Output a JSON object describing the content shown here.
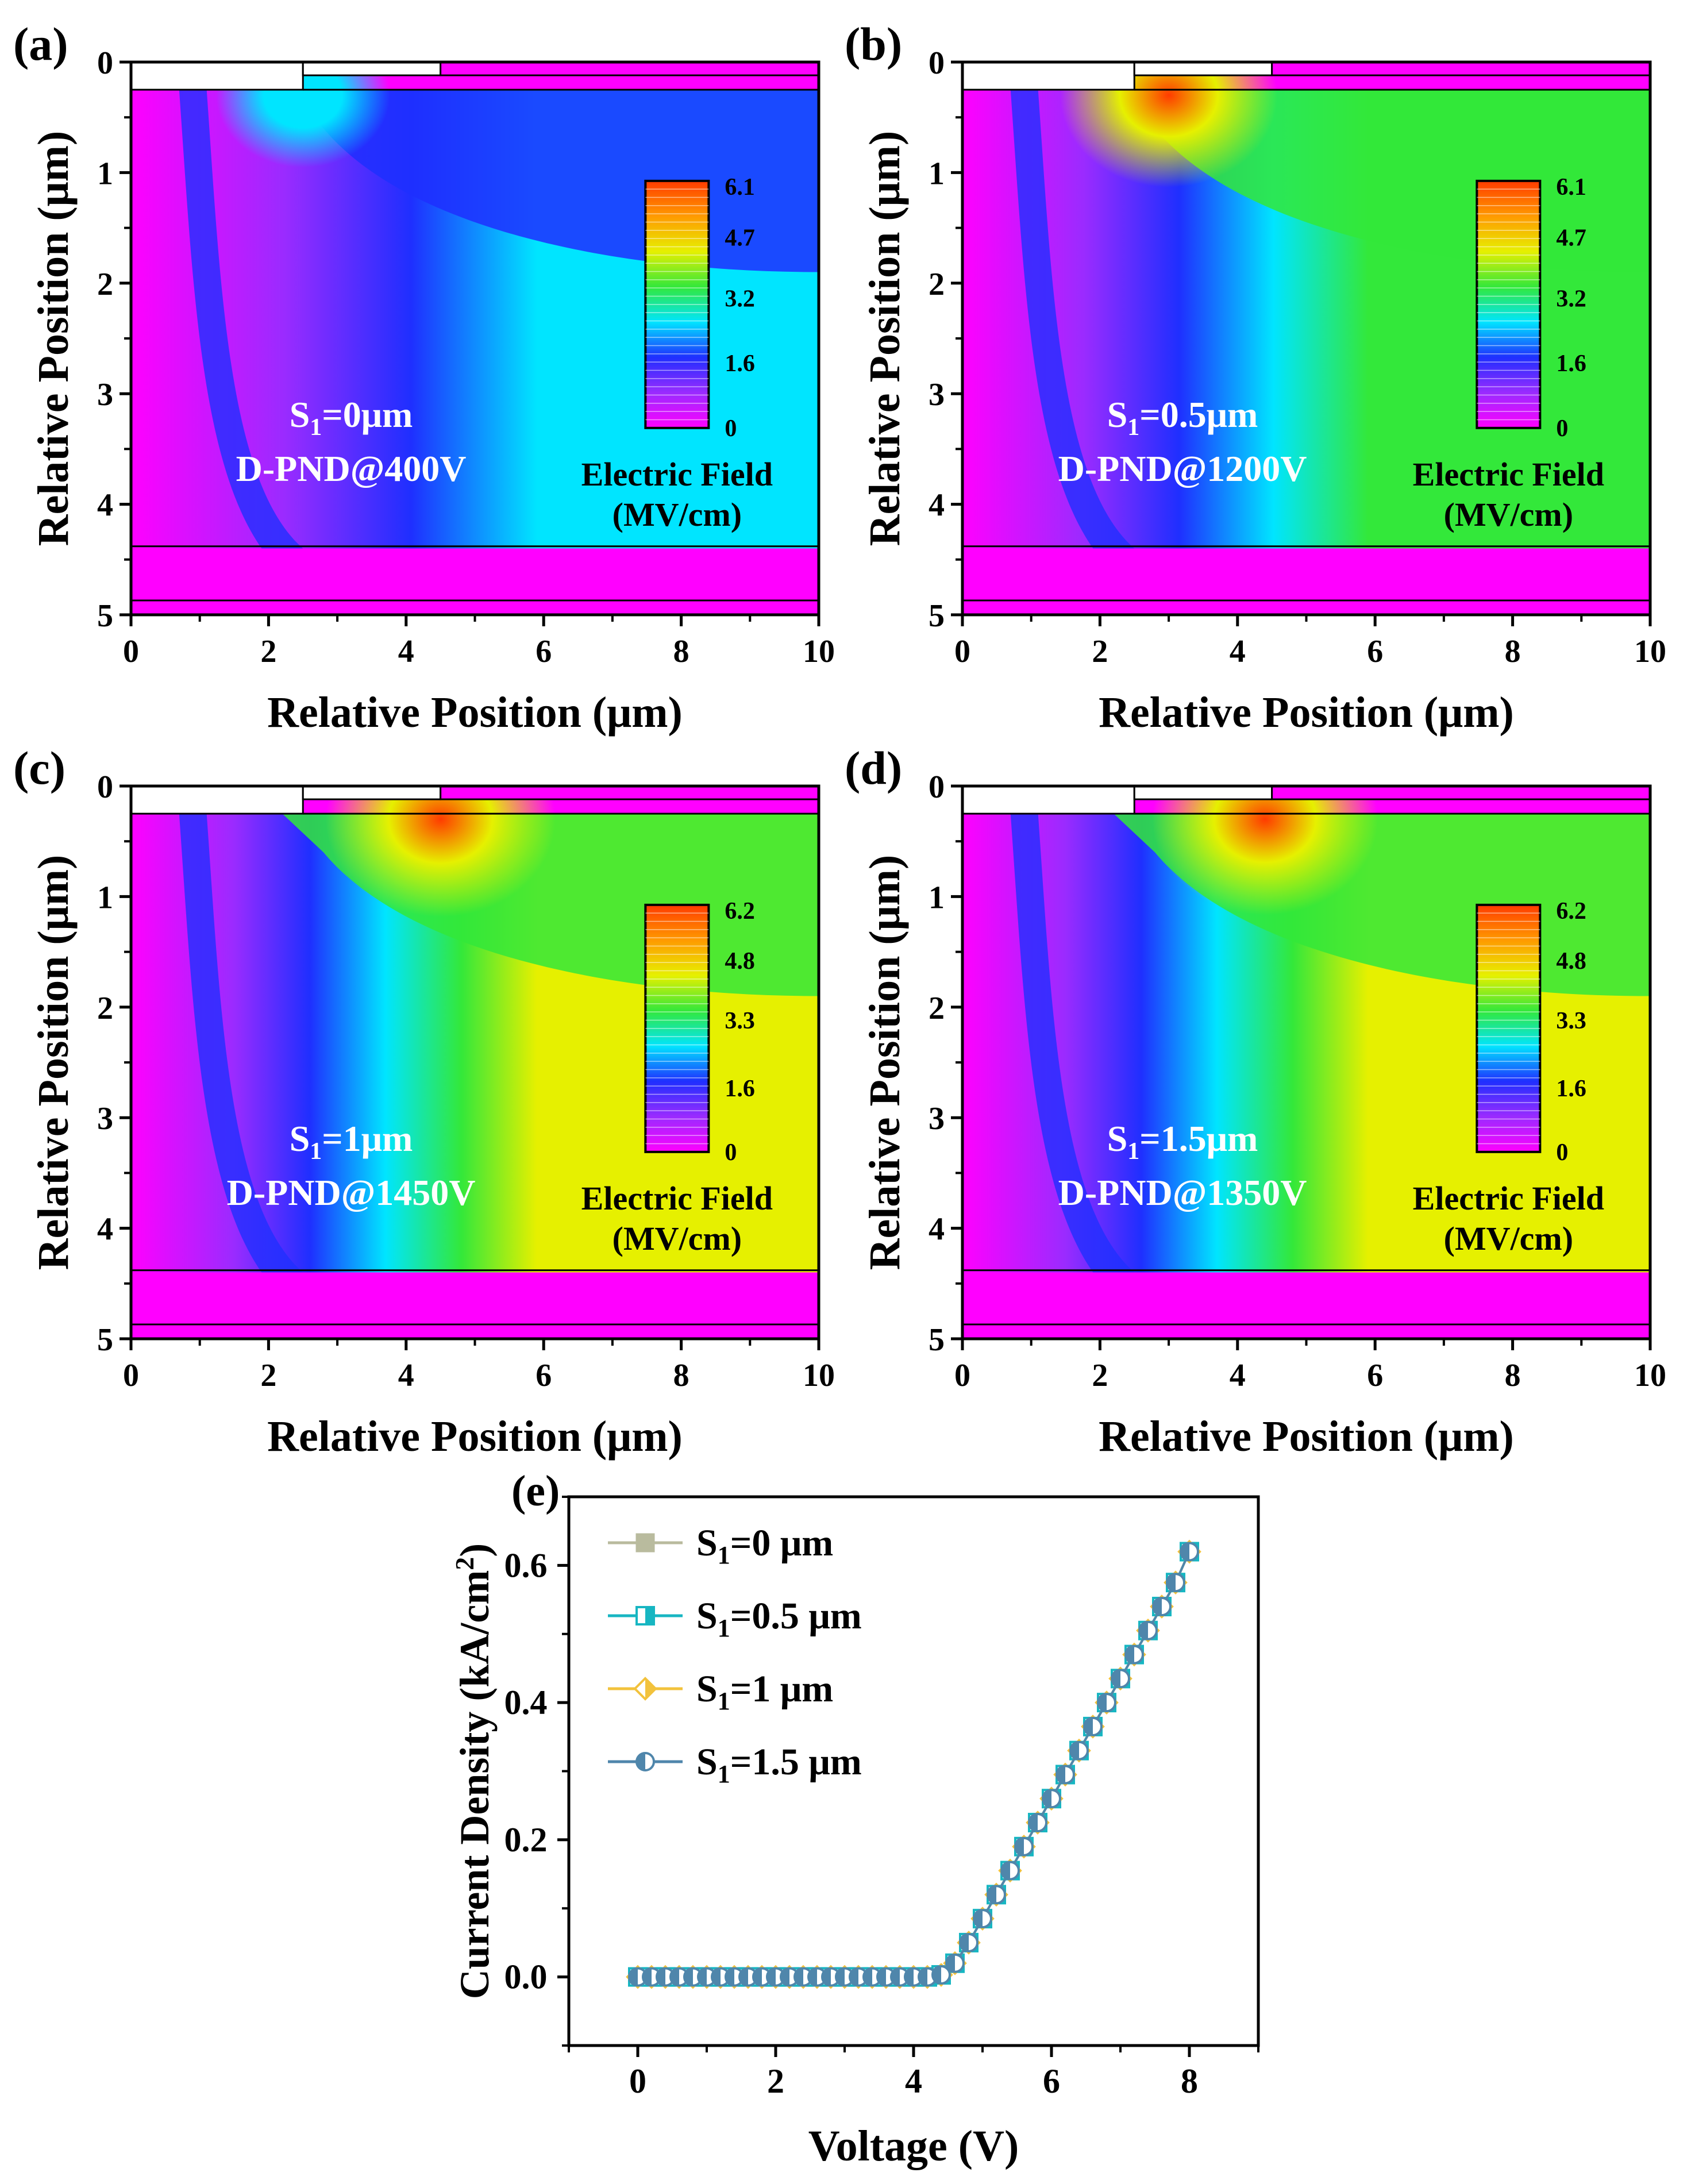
{
  "figure_title": "",
  "colors": {
    "magenta": "#ff00ff",
    "purple": "#9a2bff",
    "blue": "#1f2fff",
    "cyan": "#00e5ff",
    "green": "#33e83a",
    "yellow": "#e6f000",
    "orange": "#ff9a00",
    "red": "#ff3b00",
    "s0": "#b9bb9e",
    "s05": "#17b6c2",
    "s1": "#f2c23c",
    "s15": "#4f86ab"
  },
  "chart_data": [
    {
      "type": "heatmap",
      "panel_label": "(a)",
      "xlabel": "Relative Position (μm)",
      "ylabel": "Relative Position (μm)",
      "xlim": [
        0,
        10
      ],
      "ylim": [
        5,
        0
      ],
      "xticks": [
        "0",
        "2",
        "4",
        "6",
        "8",
        "10"
      ],
      "yticks": [
        "0",
        "1",
        "2",
        "3",
        "4",
        "5"
      ],
      "annotation": {
        "s_prefix": "S",
        "s_sub": "1",
        "s_value": "=0μm",
        "device": "D-PND@400V"
      },
      "colorbar": {
        "title": "Electric Field",
        "unit": "(MV/cm)",
        "ticks": [
          "6.1",
          "4.7",
          "3.2",
          "1.6",
          "0"
        ],
        "max": 6.1
      },
      "field_level": 0.22,
      "hotspot": {
        "x": 2.5,
        "y": 0.3,
        "value": 3.4
      }
    },
    {
      "type": "heatmap",
      "panel_label": "(b)",
      "xlabel": "Relative Position (μm)",
      "ylabel": "Relative Position (μm)",
      "xlim": [
        0,
        10
      ],
      "ylim": [
        5,
        0
      ],
      "xticks": [
        "0",
        "2",
        "4",
        "6",
        "8",
        "10"
      ],
      "yticks": [
        "0",
        "1",
        "2",
        "3",
        "4",
        "5"
      ],
      "annotation": {
        "s_prefix": "S",
        "s_sub": "1",
        "s_value": "=0.5μm",
        "device": "D-PND@1200V"
      },
      "colorbar": {
        "title": "Electric Field",
        "unit": "(MV/cm)",
        "ticks": [
          "6.1",
          "4.7",
          "3.2",
          "1.6",
          "0"
        ],
        "max": 6.1
      },
      "field_level": 0.6,
      "hotspot": {
        "x": 3.0,
        "y": 0.3,
        "value": 5.5
      }
    },
    {
      "type": "heatmap",
      "panel_label": "(c)",
      "xlabel": "Relative Position (μm)",
      "ylabel": "Relative Position (μm)",
      "xlim": [
        0,
        10
      ],
      "ylim": [
        5,
        0
      ],
      "xticks": [
        "0",
        "2",
        "4",
        "6",
        "8",
        "10"
      ],
      "yticks": [
        "0",
        "1",
        "2",
        "3",
        "4",
        "5"
      ],
      "annotation": {
        "s_prefix": "S",
        "s_sub": "1",
        "s_value": "=1μm",
        "device": "D-PND@1450V"
      },
      "colorbar": {
        "title": "Electric Field",
        "unit": "(MV/cm)",
        "ticks": [
          "6.2",
          "4.8",
          "3.3",
          "1.6",
          "0"
        ],
        "max": 6.2
      },
      "field_level": 0.72,
      "hotspot": {
        "x": 4.5,
        "y": 0.3,
        "value": 6.2
      }
    },
    {
      "type": "heatmap",
      "panel_label": "(d)",
      "xlabel": "Relative Position (μm)",
      "ylabel": "Relative Position (μm)",
      "xlim": [
        0,
        10
      ],
      "ylim": [
        5,
        0
      ],
      "xticks": [
        "0",
        "2",
        "4",
        "6",
        "8",
        "10"
      ],
      "yticks": [
        "0",
        "1",
        "2",
        "3",
        "4",
        "5"
      ],
      "annotation": {
        "s_prefix": "S",
        "s_sub": "1",
        "s_value": "=1.5μm",
        "device": "D-PND@1350V"
      },
      "colorbar": {
        "title": "Electric Field",
        "unit": "(MV/cm)",
        "ticks": [
          "6.2",
          "4.8",
          "3.3",
          "1.6",
          "0"
        ],
        "max": 6.2
      },
      "field_level": 0.68,
      "hotspot": {
        "x": 4.4,
        "y": 0.3,
        "value": 6.0
      }
    },
    {
      "type": "line",
      "panel_label": "(e)",
      "xlabel": "Voltage (V)",
      "ylabel_main": "Current Density (kA/cm",
      "ylabel_sup": "2",
      "ylabel_end": ")",
      "xlim": [
        -1,
        9
      ],
      "ylim": [
        -0.1,
        0.7
      ],
      "xticks": [
        0,
        2,
        4,
        6,
        8
      ],
      "xtick_labels": [
        "0",
        "2",
        "4",
        "6",
        "8"
      ],
      "yticks": [
        0.0,
        0.2,
        0.4,
        0.6
      ],
      "ytick_labels": [
        "0.0",
        "0.2",
        "0.4",
        "0.6"
      ],
      "x": [
        0,
        0.2,
        0.4,
        0.6,
        0.8,
        1.0,
        1.2,
        1.4,
        1.6,
        1.8,
        2.0,
        2.2,
        2.4,
        2.6,
        2.8,
        3.0,
        3.2,
        3.4,
        3.6,
        3.8,
        4.0,
        4.2,
        4.4,
        4.6,
        4.8,
        5.0,
        5.2,
        5.4,
        5.6,
        5.8,
        6.0,
        6.2,
        6.4,
        6.6,
        6.8,
        7.0,
        7.2,
        7.4,
        7.6,
        7.8,
        8.0
      ],
      "series": [
        {
          "name": "S1=0 μm",
          "label_main": "S",
          "label_sub": "1",
          "label_rest": "=0 μm",
          "marker": "square"
        },
        {
          "name": "S1=0.5 μm",
          "label_main": "S",
          "label_sub": "1",
          "label_rest": "=0.5 μm",
          "marker": "square-half"
        },
        {
          "name": "S1=1 μm",
          "label_main": "S",
          "label_sub": "1",
          "label_rest": "=1 μm",
          "marker": "diamond-half"
        },
        {
          "name": "S1=1.5 μm",
          "label_main": "S",
          "label_sub": "1",
          "label_rest": "=1.5 μm",
          "marker": "circle-half"
        }
      ],
      "values": [
        0,
        0,
        0,
        0,
        0,
        0,
        0,
        0,
        0,
        0,
        0,
        0,
        0,
        0,
        0,
        0,
        0,
        0,
        0,
        0,
        0,
        0,
        0.003,
        0.02,
        0.05,
        0.085,
        0.12,
        0.155,
        0.19,
        0.225,
        0.26,
        0.295,
        0.33,
        0.365,
        0.4,
        0.435,
        0.47,
        0.505,
        0.54,
        0.575,
        0.62
      ]
    }
  ]
}
